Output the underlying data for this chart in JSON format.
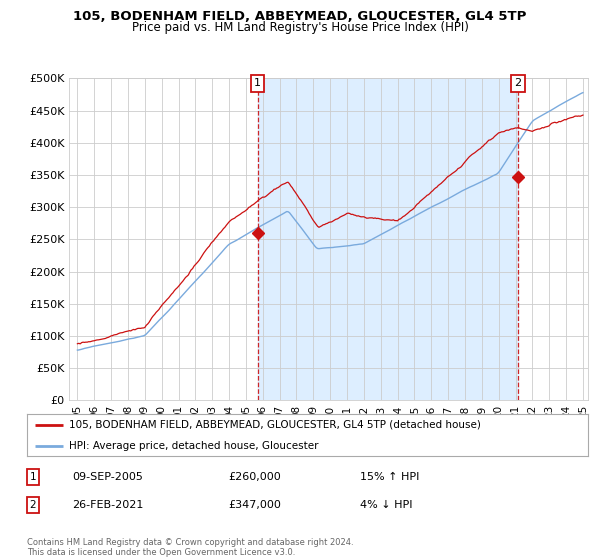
{
  "title": "105, BODENHAM FIELD, ABBEYMEAD, GLOUCESTER, GL4 5TP",
  "subtitle": "Price paid vs. HM Land Registry's House Price Index (HPI)",
  "ylim": [
    0,
    500000
  ],
  "yticks": [
    0,
    50000,
    100000,
    150000,
    200000,
    250000,
    300000,
    350000,
    400000,
    450000,
    500000
  ],
  "ytick_labels": [
    "£0",
    "£50K",
    "£100K",
    "£150K",
    "£200K",
    "£250K",
    "£300K",
    "£350K",
    "£400K",
    "£450K",
    "£500K"
  ],
  "hpi_color": "#7aaadd",
  "price_color": "#cc1111",
  "vline_color": "#cc1111",
  "shade_color": "#ddeeff",
  "bg_color": "#ffffff",
  "grid_color": "#cccccc",
  "sale1_x": 2005.69,
  "sale1_y": 260000,
  "sale2_x": 2021.15,
  "sale2_y": 347000,
  "legend_entries": [
    "105, BODENHAM FIELD, ABBEYMEAD, GLOUCESTER, GL4 5TP (detached house)",
    "HPI: Average price, detached house, Gloucester"
  ],
  "legend_colors": [
    "#cc1111",
    "#7aaadd"
  ],
  "table_rows": [
    {
      "num": "1",
      "date": "09-SEP-2005",
      "price": "£260,000",
      "hpi": "15% ↑ HPI"
    },
    {
      "num": "2",
      "date": "26-FEB-2021",
      "price": "£347,000",
      "hpi": "4% ↓ HPI"
    }
  ],
  "footnote": "Contains HM Land Registry data © Crown copyright and database right 2024.\nThis data is licensed under the Open Government Licence v3.0.",
  "xlim_start": 1994.5,
  "xlim_end": 2025.3,
  "xtick_years": [
    1995,
    1996,
    1997,
    1998,
    1999,
    2000,
    2001,
    2002,
    2003,
    2004,
    2005,
    2006,
    2007,
    2008,
    2009,
    2010,
    2011,
    2012,
    2013,
    2014,
    2015,
    2016,
    2017,
    2018,
    2019,
    2020,
    2021,
    2022,
    2023,
    2024,
    2025
  ],
  "xtick_labels": [
    "95",
    "96",
    "97",
    "98",
    "99",
    "00",
    "01",
    "02",
    "03",
    "04",
    "05",
    "06",
    "07",
    "08",
    "09",
    "10",
    "11",
    "12",
    "13",
    "14",
    "15",
    "16",
    "17",
    "18",
    "19",
    "20",
    "21",
    "22",
    "23",
    "24",
    "25"
  ]
}
